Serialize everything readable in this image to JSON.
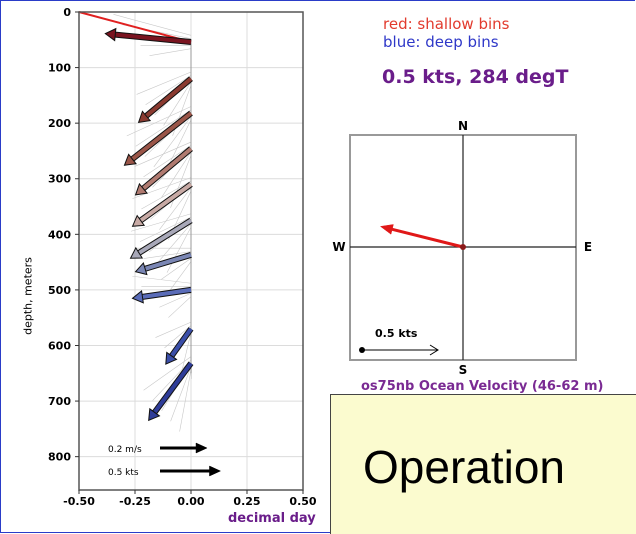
{
  "chart_data": [
    {
      "type": "quiver",
      "xlabel": "decimal day",
      "ylabel": "depth, meters",
      "xlim": [
        -0.5,
        0.5
      ],
      "ylim": [
        860,
        0
      ],
      "xticks": [
        "-0.50",
        "-0.25",
        "0.00",
        "0.25",
        "0.50"
      ],
      "yticks": [
        "0",
        "100",
        "200",
        "300",
        "400",
        "500",
        "600",
        "700",
        "800"
      ],
      "grid": true,
      "arrows": [
        {
          "depth": 54,
          "u": -0.85,
          "v": 0.1,
          "color": "#7a1420"
        },
        {
          "depth": 120,
          "u": -0.52,
          "v": -0.52,
          "color": "#8a3a30"
        },
        {
          "depth": 182,
          "u": -0.66,
          "v": -0.62,
          "color": "#9a5548"
        },
        {
          "depth": 246,
          "u": -0.55,
          "v": -0.55,
          "color": "#b07a70"
        },
        {
          "depth": 310,
          "u": -0.58,
          "v": -0.5,
          "color": "#c8aaa5"
        },
        {
          "depth": 375,
          "u": -0.6,
          "v": -0.45,
          "color": "#a8a8b8"
        },
        {
          "depth": 437,
          "u": -0.55,
          "v": -0.2,
          "color": "#7a86b4"
        },
        {
          "depth": 500,
          "u": -0.58,
          "v": -0.1,
          "color": "#5a6cb8"
        },
        {
          "depth": 570,
          "u": -0.25,
          "v": -0.42,
          "color": "#3a4ea8"
        },
        {
          "depth": 632,
          "u": -0.42,
          "v": -0.68,
          "color": "#2e3c98"
        }
      ],
      "surface_line": {
        "from_depth": 0,
        "x_from": -0.5,
        "to_depth": 54,
        "x_to": 0.0,
        "color": "#e02020"
      },
      "scale_arrows": [
        {
          "label": "0.2 m/s",
          "length_x": 0.21
        },
        {
          "label": "0.5 kts",
          "length_x": 0.27
        }
      ]
    },
    {
      "type": "compass",
      "title": "os75nb Ocean Velocity (46-62 m)",
      "summary": "0.5 kts, 284 degT",
      "speed_kts": 0.5,
      "direction_degT": 284,
      "directions": {
        "n": "N",
        "s": "S",
        "e": "E",
        "w": "W"
      },
      "scale_label": "0.5 kts",
      "arrow_color": "#e01818",
      "legend": {
        "red": "red: shallow bins",
        "blue": "blue: deep bins"
      }
    }
  ],
  "overlay": {
    "text": "Operation"
  }
}
